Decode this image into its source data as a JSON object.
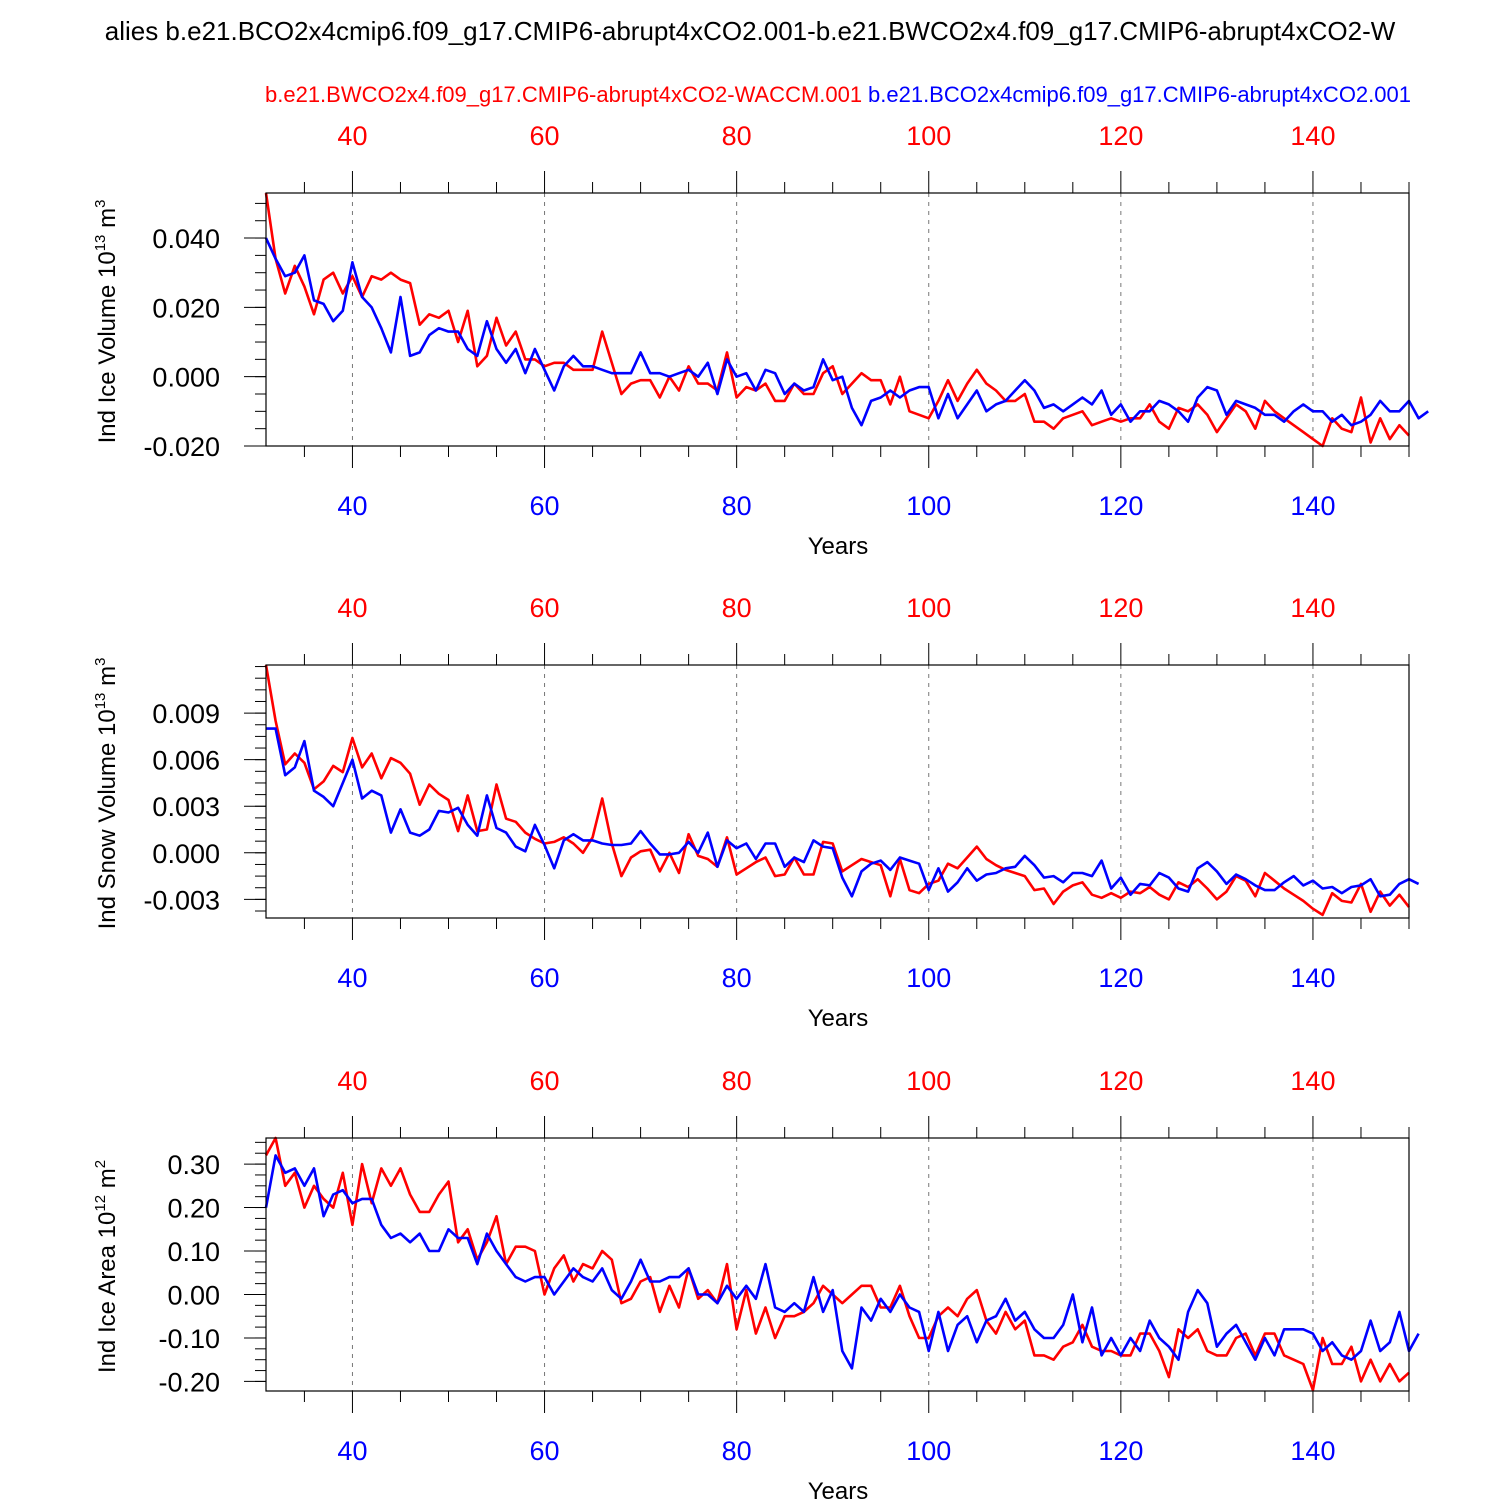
{
  "figure": {
    "title": "alies b.e21.BCO2x4cmip6.f09_g17.CMIP6-abrupt4xCO2.001-b.e21.BWCO2x4.f09_g17.CMIP6-abrupt4xCO2-W",
    "legend_red": "b.e21.BWCO2x4.f09_g17.CMIP6-abrupt4xCO2-WACCM.001",
    "legend_blue": "b.e21.BCO2x4cmip6.f09_g17.CMIP6-abrupt4xCO2.001",
    "colors": {
      "red": "#ff0000",
      "blue": "#0000ff"
    }
  },
  "chart_data": [
    {
      "type": "line",
      "title": "",
      "ylabel_main": "Ind Ice Volume 10",
      "ylabel_exp": "13",
      "ylabel_unit": " m",
      "ylabel_unit_exp": "3",
      "xlabel": "Years",
      "xlim": [
        31,
        150
      ],
      "ylim": [
        -0.02,
        0.053
      ],
      "yticks": [
        -0.02,
        0.0,
        0.02,
        0.04
      ],
      "yticklabels": [
        "-0.020",
        "0.000",
        "0.020",
        "0.040"
      ],
      "yminor": 0.005,
      "xticks": [
        40,
        60,
        80,
        100,
        120,
        140
      ],
      "xticklabels": [
        "40",
        "60",
        "80",
        "100",
        "120",
        "140"
      ],
      "grid": "vertical dashed at major x ticks",
      "x_start": 31,
      "series": [
        {
          "name": "b.e21.BWCO2x4.f09_g17.CMIP6-abrupt4xCO2-WACCM.001",
          "color": "#ff0000",
          "values": [
            0.053,
            0.034,
            0.024,
            0.032,
            0.026,
            0.018,
            0.028,
            0.03,
            0.024,
            0.029,
            0.023,
            0.029,
            0.028,
            0.03,
            0.028,
            0.027,
            0.015,
            0.018,
            0.017,
            0.019,
            0.01,
            0.019,
            0.003,
            0.006,
            0.017,
            0.009,
            0.013,
            0.005,
            0.005,
            0.003,
            0.004,
            0.004,
            0.002,
            0.002,
            0.002,
            0.013,
            0.004,
            -0.005,
            -0.002,
            -0.001,
            -0.001,
            -0.006,
            0.0,
            -0.004,
            0.003,
            -0.002,
            -0.002,
            -0.004,
            0.007,
            -0.006,
            -0.003,
            -0.004,
            -0.002,
            -0.007,
            -0.007,
            -0.002,
            -0.005,
            -0.005,
            0.001,
            0.003,
            -0.005,
            -0.002,
            0.001,
            -0.001,
            -0.001,
            -0.008,
            0.0,
            -0.01,
            -0.011,
            -0.012,
            -0.007,
            -0.001,
            -0.007,
            -0.002,
            0.002,
            -0.002,
            -0.004,
            -0.007,
            -0.007,
            -0.005,
            -0.013,
            -0.013,
            -0.015,
            -0.012,
            -0.011,
            -0.01,
            -0.014,
            -0.013,
            -0.012,
            -0.013,
            -0.012,
            -0.012,
            -0.008,
            -0.013,
            -0.015,
            -0.009,
            -0.01,
            -0.008,
            -0.011,
            -0.016,
            -0.012,
            -0.008,
            -0.01,
            -0.015,
            -0.007,
            -0.01,
            -0.012,
            -0.014,
            -0.016,
            -0.018,
            -0.02,
            -0.012,
            -0.015,
            -0.016,
            -0.006,
            -0.019,
            -0.012,
            -0.018,
            -0.014,
            -0.017
          ]
        },
        {
          "name": "b.e21.BCO2x4cmip6.f09_g17.CMIP6-abrupt4xCO2.001",
          "color": "#0000ff",
          "values": [
            0.04,
            0.034,
            0.029,
            0.03,
            0.035,
            0.022,
            0.021,
            0.016,
            0.019,
            0.033,
            0.023,
            0.02,
            0.014,
            0.007,
            0.023,
            0.006,
            0.007,
            0.012,
            0.014,
            0.013,
            0.013,
            0.008,
            0.006,
            0.016,
            0.008,
            0.004,
            0.008,
            0.001,
            0.008,
            0.002,
            -0.004,
            0.003,
            0.006,
            0.003,
            0.003,
            0.002,
            0.001,
            0.001,
            0.001,
            0.007,
            0.001,
            0.001,
            0.0,
            0.001,
            0.002,
            0.0,
            0.004,
            -0.005,
            0.005,
            0.0,
            0.001,
            -0.004,
            0.002,
            0.001,
            -0.005,
            -0.002,
            -0.004,
            -0.003,
            0.005,
            -0.001,
            0.0,
            -0.009,
            -0.014,
            -0.007,
            -0.006,
            -0.004,
            -0.006,
            -0.004,
            -0.003,
            -0.003,
            -0.012,
            -0.005,
            -0.012,
            -0.008,
            -0.004,
            -0.01,
            -0.008,
            -0.007,
            -0.004,
            -0.001,
            -0.004,
            -0.009,
            -0.008,
            -0.01,
            -0.008,
            -0.006,
            -0.008,
            -0.004,
            -0.011,
            -0.008,
            -0.013,
            -0.01,
            -0.01,
            -0.007,
            -0.008,
            -0.01,
            -0.013,
            -0.006,
            -0.003,
            -0.004,
            -0.011,
            -0.007,
            -0.008,
            -0.009,
            -0.011,
            -0.011,
            -0.013,
            -0.01,
            -0.008,
            -0.01,
            -0.01,
            -0.013,
            -0.011,
            -0.014,
            -0.013,
            -0.011,
            -0.007,
            -0.01,
            -0.01,
            -0.007,
            -0.012,
            -0.01
          ]
        }
      ]
    },
    {
      "type": "line",
      "title": "",
      "ylabel_main": "Ind Snow Volume 10",
      "ylabel_exp": "13",
      "ylabel_unit": " m",
      "ylabel_unit_exp": "3",
      "xlabel": "Years",
      "xlim": [
        31,
        150
      ],
      "ylim": [
        -0.0042,
        0.0121
      ],
      "yticks": [
        -0.003,
        0.0,
        0.003,
        0.006,
        0.009
      ],
      "yticklabels": [
        "-0.003",
        "0.000",
        "0.003",
        "0.006",
        "0.009"
      ],
      "yminor": 0.00075,
      "xticks": [
        40,
        60,
        80,
        100,
        120,
        140
      ],
      "xticklabels": [
        "40",
        "60",
        "80",
        "100",
        "120",
        "140"
      ],
      "grid": "vertical dashed at major x ticks",
      "x_start": 31,
      "series": [
        {
          "name": "b.e21.BWCO2x4.f09_g17.CMIP6-abrupt4xCO2-WACCM.001",
          "color": "#ff0000",
          "values": [
            0.0121,
            0.0085,
            0.0057,
            0.0064,
            0.0058,
            0.0041,
            0.0046,
            0.0056,
            0.0052,
            0.0074,
            0.0055,
            0.0064,
            0.0048,
            0.0061,
            0.0058,
            0.0051,
            0.0031,
            0.0044,
            0.0038,
            0.0034,
            0.0014,
            0.0037,
            0.0014,
            0.0015,
            0.0044,
            0.0022,
            0.002,
            0.0013,
            0.0009,
            0.0006,
            0.0007,
            0.001,
            0.0006,
            0.0,
            0.001,
            0.0035,
            0.0006,
            -0.0015,
            -0.0003,
            0.0001,
            0.0002,
            -0.0012,
            0.0,
            -0.0013,
            0.0012,
            -0.0002,
            -0.0004,
            -0.0009,
            0.001,
            -0.0014,
            -0.001,
            -0.0006,
            -0.0003,
            -0.0015,
            -0.0014,
            -0.0003,
            -0.0014,
            -0.0014,
            0.0007,
            0.0006,
            -0.0012,
            -0.0008,
            -0.0004,
            -0.0006,
            -0.0008,
            -0.0028,
            -0.0004,
            -0.0024,
            -0.0026,
            -0.002,
            -0.0018,
            -0.0007,
            -0.001,
            -0.0003,
            0.0004,
            -0.0004,
            -0.0008,
            -0.0011,
            -0.0013,
            -0.0015,
            -0.0024,
            -0.0023,
            -0.0033,
            -0.0025,
            -0.0021,
            -0.0019,
            -0.0027,
            -0.0029,
            -0.0026,
            -0.0029,
            -0.0025,
            -0.0026,
            -0.0022,
            -0.0027,
            -0.003,
            -0.0019,
            -0.0022,
            -0.0017,
            -0.0023,
            -0.003,
            -0.0025,
            -0.0015,
            -0.0018,
            -0.0028,
            -0.0013,
            -0.0018,
            -0.0023,
            -0.0027,
            -0.0031,
            -0.0036,
            -0.004,
            -0.0026,
            -0.0031,
            -0.0032,
            -0.002,
            -0.0038,
            -0.0025,
            -0.0034,
            -0.0027,
            -0.0035
          ]
        },
        {
          "name": "b.e21.BCO2x4cmip6.f09_g17.CMIP6-abrupt4xCO2.001",
          "color": "#0000ff",
          "values": [
            0.008,
            0.008,
            0.005,
            0.0055,
            0.0072,
            0.004,
            0.0036,
            0.003,
            0.0045,
            0.006,
            0.0035,
            0.004,
            0.0037,
            0.0013,
            0.0028,
            0.0013,
            0.0011,
            0.0015,
            0.0027,
            0.0026,
            0.0029,
            0.0018,
            0.0011,
            0.0037,
            0.0016,
            0.0013,
            0.0004,
            0.0001,
            0.0018,
            0.0005,
            -0.001,
            0.0008,
            0.0012,
            0.0008,
            0.0008,
            0.0006,
            0.0005,
            0.0005,
            0.0006,
            0.0014,
            0.0006,
            -0.0001,
            -0.0001,
            0.0,
            0.0007,
            0.0,
            0.0013,
            -0.0009,
            0.0008,
            0.0003,
            0.0006,
            -0.0004,
            0.0006,
            0.0006,
            -0.0009,
            -0.0003,
            -0.0006,
            0.0008,
            0.0004,
            0.0003,
            -0.0016,
            -0.0028,
            -0.0012,
            -0.0007,
            -0.0005,
            -0.0011,
            -0.0003,
            -0.0005,
            -0.0007,
            -0.0024,
            -0.001,
            -0.0025,
            -0.0019,
            -0.001,
            -0.0018,
            -0.0014,
            -0.0013,
            -0.001,
            -0.0009,
            -0.0002,
            -0.0008,
            -0.0016,
            -0.0015,
            -0.0019,
            -0.0013,
            -0.0013,
            -0.0015,
            -0.0005,
            -0.0023,
            -0.0016,
            -0.0027,
            -0.002,
            -0.0021,
            -0.0013,
            -0.0016,
            -0.0023,
            -0.0025,
            -0.001,
            -0.0006,
            -0.0012,
            -0.002,
            -0.0014,
            -0.0017,
            -0.0021,
            -0.0024,
            -0.0024,
            -0.0019,
            -0.0015,
            -0.0021,
            -0.0018,
            -0.0023,
            -0.0022,
            -0.0026,
            -0.0022,
            -0.0021,
            -0.0017,
            -0.0028,
            -0.0027,
            -0.002,
            -0.0017,
            -0.002
          ]
        }
      ]
    },
    {
      "type": "line",
      "title": "",
      "ylabel_main": "Ind Ice Area 10",
      "ylabel_exp": "12",
      "ylabel_unit": " m",
      "ylabel_unit_exp": "2",
      "xlabel": "Years",
      "xlim": [
        31,
        150
      ],
      "ylim": [
        -0.222,
        0.36
      ],
      "yticks": [
        -0.2,
        -0.1,
        0.0,
        0.1,
        0.2,
        0.3
      ],
      "yticklabels": [
        "-0.20",
        "-0.10",
        "0.00",
        "0.10",
        "0.20",
        "0.30"
      ],
      "yminor": 0.025,
      "xticks": [
        40,
        60,
        80,
        100,
        120,
        140
      ],
      "xticklabels": [
        "40",
        "60",
        "80",
        "100",
        "120",
        "140"
      ],
      "grid": "vertical dashed at major x ticks",
      "x_start": 31,
      "series": [
        {
          "name": "b.e21.BWCO2x4.f09_g17.CMIP6-abrupt4xCO2-WACCM.001",
          "color": "#ff0000",
          "values": [
            0.32,
            0.36,
            0.25,
            0.28,
            0.2,
            0.25,
            0.22,
            0.2,
            0.28,
            0.16,
            0.3,
            0.21,
            0.29,
            0.25,
            0.29,
            0.23,
            0.19,
            0.19,
            0.23,
            0.26,
            0.12,
            0.15,
            0.08,
            0.12,
            0.18,
            0.07,
            0.11,
            0.11,
            0.1,
            0.0,
            0.06,
            0.09,
            0.03,
            0.07,
            0.06,
            0.1,
            0.08,
            -0.02,
            -0.01,
            0.03,
            0.04,
            -0.04,
            0.02,
            -0.03,
            0.06,
            -0.01,
            0.01,
            -0.02,
            0.07,
            -0.08,
            0.01,
            -0.09,
            -0.03,
            -0.1,
            -0.05,
            -0.05,
            -0.04,
            -0.02,
            0.02,
            0.0,
            -0.02,
            0.0,
            0.02,
            0.02,
            -0.03,
            -0.03,
            0.02,
            -0.05,
            -0.1,
            -0.1,
            -0.05,
            -0.03,
            -0.05,
            -0.01,
            0.01,
            -0.06,
            -0.09,
            -0.04,
            -0.08,
            -0.06,
            -0.14,
            -0.14,
            -0.15,
            -0.12,
            -0.11,
            -0.07,
            -0.12,
            -0.13,
            -0.13,
            -0.14,
            -0.14,
            -0.09,
            -0.09,
            -0.13,
            -0.19,
            -0.08,
            -0.1,
            -0.08,
            -0.13,
            -0.14,
            -0.14,
            -0.1,
            -0.09,
            -0.14,
            -0.09,
            -0.09,
            -0.14,
            -0.15,
            -0.16,
            -0.22,
            -0.1,
            -0.16,
            -0.16,
            -0.12,
            -0.2,
            -0.15,
            -0.2,
            -0.16,
            -0.2,
            -0.18
          ]
        },
        {
          "name": "b.e21.BCO2x4cmip6.f09_g17.CMIP6-abrupt4xCO2.001",
          "color": "#0000ff",
          "values": [
            0.2,
            0.32,
            0.28,
            0.29,
            0.25,
            0.29,
            0.18,
            0.23,
            0.24,
            0.21,
            0.22,
            0.22,
            0.16,
            0.13,
            0.14,
            0.12,
            0.14,
            0.1,
            0.1,
            0.15,
            0.13,
            0.13,
            0.07,
            0.14,
            0.1,
            0.07,
            0.04,
            0.03,
            0.04,
            0.04,
            0.0,
            0.03,
            0.06,
            0.04,
            0.03,
            0.06,
            0.01,
            -0.01,
            0.03,
            0.08,
            0.03,
            0.03,
            0.04,
            0.04,
            0.06,
            0.0,
            0.0,
            -0.02,
            0.02,
            -0.01,
            0.02,
            -0.01,
            0.07,
            -0.03,
            -0.04,
            -0.02,
            -0.04,
            0.04,
            -0.04,
            0.01,
            -0.13,
            -0.17,
            -0.03,
            -0.06,
            -0.01,
            -0.04,
            0.0,
            -0.03,
            -0.04,
            -0.13,
            -0.04,
            -0.13,
            -0.07,
            -0.05,
            -0.11,
            -0.06,
            -0.05,
            -0.01,
            -0.06,
            -0.04,
            -0.08,
            -0.1,
            -0.1,
            -0.07,
            0.0,
            -0.11,
            -0.03,
            -0.14,
            -0.1,
            -0.14,
            -0.1,
            -0.13,
            -0.06,
            -0.1,
            -0.12,
            -0.15,
            -0.04,
            0.01,
            -0.02,
            -0.12,
            -0.09,
            -0.07,
            -0.11,
            -0.15,
            -0.1,
            -0.14,
            -0.08,
            -0.08,
            -0.08,
            -0.09,
            -0.13,
            -0.11,
            -0.14,
            -0.15,
            -0.13,
            -0.06,
            -0.13,
            -0.11,
            -0.04,
            -0.13,
            -0.09
          ]
        }
      ]
    }
  ]
}
